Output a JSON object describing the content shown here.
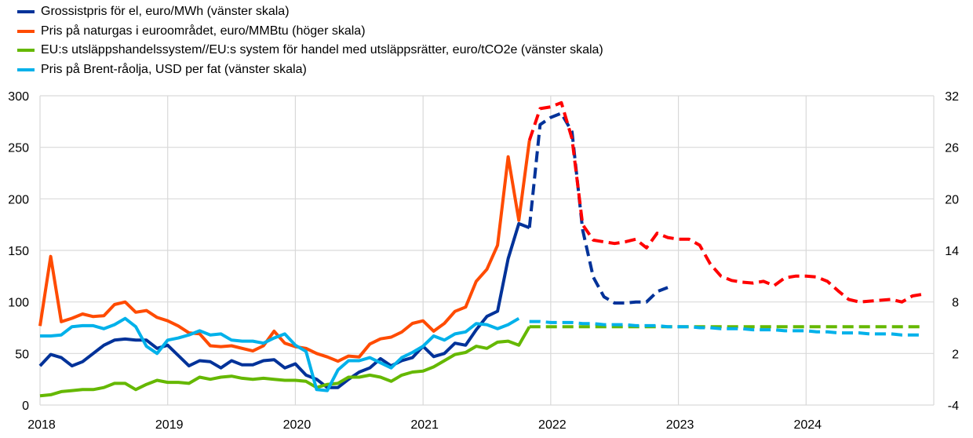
{
  "chart_data": {
    "type": "line",
    "title": "",
    "legend_position": "top-left",
    "grid": true,
    "x_start": "2018-01",
    "x_frequency": "monthly",
    "x_ticks": [
      "2018",
      "2019",
      "2020",
      "2021",
      "2022",
      "2023",
      "2024"
    ],
    "xlim": [
      "2018-01",
      "2025-01"
    ],
    "y_left": {
      "lim": [
        0,
        300
      ],
      "ticks": [
        "0",
        "50",
        "100",
        "150",
        "200",
        "250",
        "300"
      ]
    },
    "y_right": {
      "lim": [
        -4,
        32
      ],
      "ticks": [
        "-4",
        "2",
        "8",
        "14",
        "20",
        "26",
        "32"
      ]
    },
    "legend": [
      {
        "label": "Grossistpris för el, euro/MWh (vänster skala)",
        "color": "#003299"
      },
      {
        "label": "Pris på naturgas i euroområdet, euro/MMBtu (höger skala)",
        "color": "#ff4b00"
      },
      {
        "label": "EU:s utsläppshandelssystem//EU:s system för handel med utsläppsrätter, euro/tCO2e (vänster skala)",
        "color": "#65b800"
      },
      {
        "label": "Pris på Brent-råolja, USD per fat (vänster skala)",
        "color": "#00b1ea"
      }
    ],
    "series": [
      {
        "name": "Grossistpris för el, euro/MWh (vänster skala)",
        "axis": "left",
        "style": "solid",
        "color": "#003299",
        "start": "2018-01",
        "values": [
          38,
          49,
          46,
          38,
          42,
          50,
          58,
          63,
          64,
          63,
          63,
          55,
          58,
          48,
          38,
          43,
          42,
          36,
          43,
          39,
          39,
          43,
          44,
          36,
          40,
          29,
          25,
          17,
          17,
          25,
          32,
          36,
          45,
          38,
          43,
          46,
          57,
          47,
          50,
          60,
          58,
          73,
          86,
          91,
          142,
          176,
          172
        ]
      },
      {
        "name": "Grossistpris för el, euro/MWh (vänster skala)",
        "axis": "left",
        "style": "dashed",
        "color": "#003299",
        "start": "2021-11",
        "values": [
          172,
          272,
          279,
          283,
          265,
          170,
          124,
          105,
          99,
          99,
          100,
          100,
          110,
          114
        ]
      },
      {
        "name": "Pris på naturgas i euroområdet, euro/MMBtu (höger skala)",
        "axis": "right",
        "style": "solid",
        "color": "#ff4b00",
        "start": "2018-01",
        "values": [
          5.2,
          13.3,
          5.7,
          6.1,
          6.6,
          6.3,
          6.4,
          7.7,
          8.0,
          6.8,
          7.0,
          6.2,
          5.8,
          5.2,
          4.4,
          4.3,
          2.9,
          2.8,
          2.9,
          2.6,
          2.3,
          2.9,
          4.6,
          3.2,
          2.8,
          2.6,
          2.0,
          1.6,
          1.1,
          1.7,
          1.6,
          3.1,
          3.7,
          3.9,
          4.5,
          5.5,
          5.8,
          4.6,
          5.5,
          6.9,
          7.4,
          10.4,
          11.8,
          14.6,
          24.9,
          17.5,
          26.8
        ]
      },
      {
        "name": "Pris på naturgas i euroområdet, euro/MMBtu (höger skala)",
        "axis": "right",
        "style": "dashed",
        "color": "#ff0000",
        "start": "2021-11",
        "values": [
          26.8,
          30.5,
          30.7,
          31.2,
          27,
          17,
          15.2,
          15.0,
          14.8,
          15.0,
          15.3,
          14.3,
          16.0,
          15.5,
          15.3,
          15.3,
          14.6,
          12.4,
          11.0,
          10.5,
          10.3,
          10.2,
          10.4,
          9.9,
          10.8,
          11.0,
          11.0,
          10.9,
          10.4,
          9.3,
          8.3,
          8.0,
          8.1,
          8.2,
          8.3,
          8.0,
          8.7,
          8.9
        ]
      },
      {
        "name": "EU:s utsläppshandelssystem//EU:s system för handel med utsläppsrätter, euro/tCO2e (vänster skala)",
        "axis": "left",
        "style": "solid",
        "color": "#65b800",
        "start": "2018-01",
        "values": [
          9,
          10,
          13,
          14,
          15,
          15,
          17,
          21,
          21,
          15,
          20,
          24,
          22,
          22,
          21,
          27,
          25,
          27,
          28,
          26,
          25,
          26,
          25,
          24,
          24,
          23,
          17,
          20,
          21,
          27,
          27,
          29,
          27,
          23,
          29,
          32,
          33,
          37,
          43,
          49,
          51,
          57,
          55,
          61,
          62,
          58,
          76
        ]
      },
      {
        "name": "EU:s utsläppshandelssystem//EU:s system för handel med utsläppsrätter, euro/tCO2e (vänster skala)",
        "axis": "left",
        "style": "dashed",
        "color": "#65b800",
        "start": "2021-11",
        "values": [
          76,
          76,
          76,
          76,
          76,
          76,
          76,
          76,
          76,
          76,
          76,
          76,
          76,
          76,
          76,
          76,
          76,
          76,
          76,
          76,
          76,
          76,
          76,
          76,
          76,
          76,
          76,
          76,
          76,
          76,
          76,
          76,
          76,
          76,
          76,
          76,
          76,
          76
        ]
      },
      {
        "name": "Pris på Brent-råolja, USD per fat (vänster skala)",
        "axis": "left",
        "style": "solid",
        "color": "#00b1ea",
        "start": "2018-01",
        "values": [
          67,
          67,
          68,
          76,
          77,
          77,
          74,
          78,
          84,
          76,
          57,
          50,
          63,
          65,
          68,
          72,
          68,
          69,
          63,
          62,
          62,
          60,
          65,
          69,
          58,
          52,
          15,
          14,
          34,
          43,
          43,
          46,
          41,
          36,
          46,
          51,
          57,
          67,
          63,
          69,
          71,
          79,
          78,
          74,
          78,
          84
        ]
      },
      {
        "name": "Pris på Brent-råolja, USD per fat (vänster skala)",
        "axis": "left",
        "style": "dashed",
        "color": "#00b1ea",
        "start": "2021-11",
        "values": [
          81,
          81,
          80,
          80,
          80,
          79,
          79,
          78,
          78,
          78,
          77,
          77,
          77,
          76,
          76,
          76,
          75,
          75,
          74,
          74,
          74,
          73,
          73,
          73,
          72,
          72,
          72,
          71,
          71,
          70,
          70,
          70,
          69,
          69,
          69,
          68,
          68,
          68
        ]
      }
    ]
  }
}
